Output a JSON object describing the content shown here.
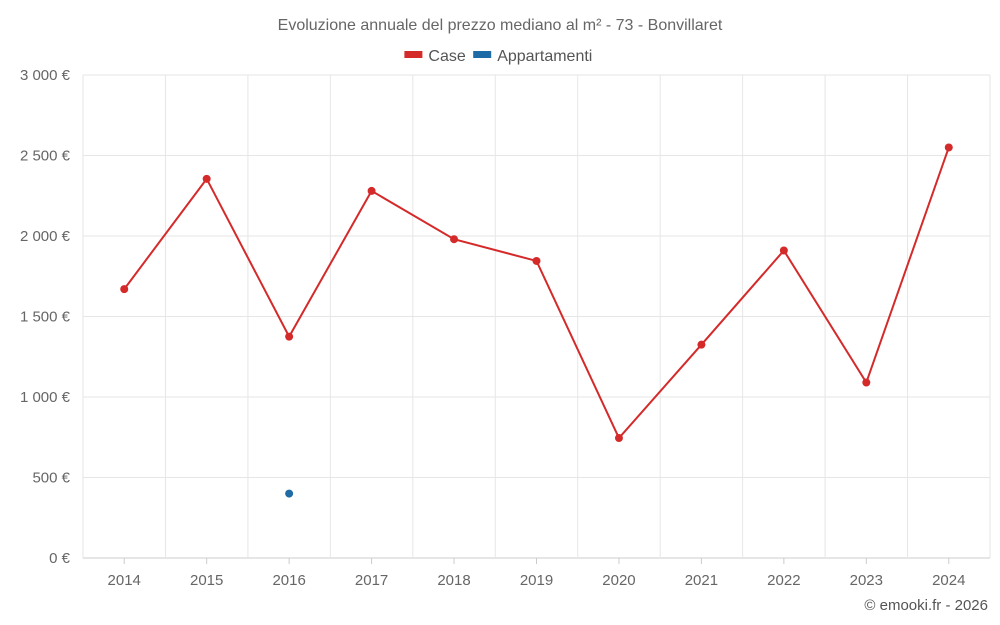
{
  "chart_data": {
    "type": "line",
    "title": "Evoluzione annuale del prezzo mediano al m² - 73 - Bonvillaret",
    "categories": [
      "2014",
      "2015",
      "2016",
      "2017",
      "2018",
      "2019",
      "2020",
      "2021",
      "2022",
      "2023",
      "2024"
    ],
    "series": [
      {
        "name": "Case",
        "color": "#d42a2a",
        "values": [
          1670,
          2355,
          1375,
          2280,
          1980,
          1845,
          745,
          1325,
          1910,
          1090,
          2550
        ]
      },
      {
        "name": "Appartamenti",
        "color": "#1f6ba5",
        "values": [
          null,
          null,
          400,
          null,
          null,
          null,
          null,
          null,
          null,
          null,
          null
        ]
      }
    ],
    "ylim": [
      0,
      3000
    ],
    "yticks": [
      0,
      500,
      1000,
      1500,
      2000,
      2500,
      3000
    ],
    "ytick_labels": [
      "0 €",
      "500 €",
      "1 000 €",
      "1 500 €",
      "2 000 €",
      "2 500 €",
      "3 000 €"
    ],
    "grid": true,
    "legend_position": "top-center"
  },
  "credit": "© emooki.fr - 2026"
}
